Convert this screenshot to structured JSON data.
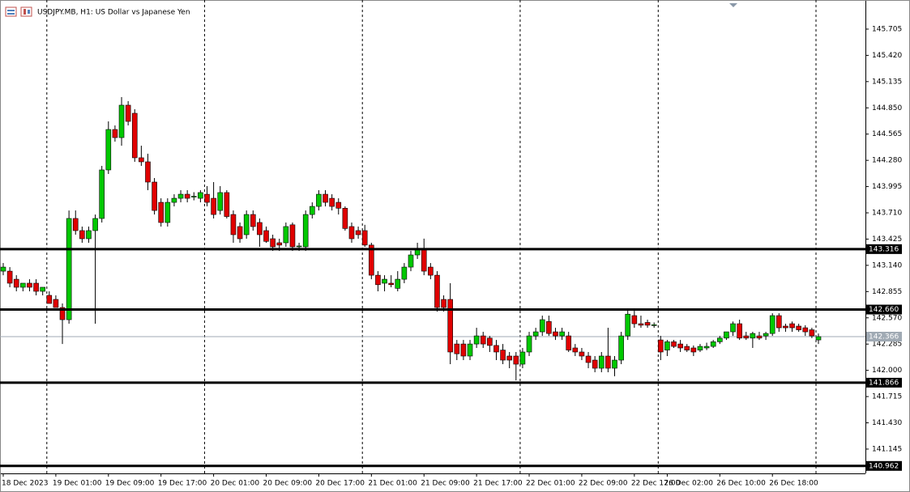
{
  "chart_data": {
    "type": "candlestick",
    "title": "USDJPY.MB, H1:  US Dollar vs Japanese Yen",
    "categories": [
      "18 Dec 2023",
      null,
      null,
      null,
      null,
      null,
      null,
      null,
      "19 Dec 01:00",
      null,
      null,
      null,
      null,
      null,
      null,
      null,
      "19 Dec 09:00",
      null,
      null,
      null,
      null,
      null,
      null,
      null,
      "19 Dec 17:00",
      null,
      null,
      null,
      null,
      null,
      null,
      null,
      "20 Dec 01:00",
      null,
      null,
      null,
      null,
      null,
      null,
      null,
      "20 Dec 09:00",
      null,
      null,
      null,
      null,
      null,
      null,
      null,
      "20 Dec 17:00",
      null,
      null,
      null,
      null,
      null,
      null,
      null,
      "21 Dec 01:00",
      null,
      null,
      null,
      null,
      null,
      null,
      null,
      "21 Dec 09:00",
      null,
      null,
      null,
      null,
      null,
      null,
      null,
      "21 Dec 17:00",
      null,
      null,
      null,
      null,
      null,
      null,
      null,
      "22 Dec 01:00",
      null,
      null,
      null,
      null,
      null,
      null,
      null,
      "22 Dec 09:00",
      null,
      null,
      null,
      null,
      null,
      null,
      null,
      "22 Dec 17:00",
      null,
      null,
      null,
      null,
      "26 Dec 02:00",
      null,
      null,
      null,
      null,
      null,
      null,
      null,
      "26 Dec 10:00",
      null,
      null,
      null,
      null,
      null,
      null,
      null,
      "26 Dec 18:00",
      null,
      null,
      null,
      null,
      null,
      null,
      null
    ],
    "ohlc": [
      [
        143.077,
        143.165,
        143.033,
        143.121
      ],
      [
        143.077,
        143.121,
        142.902,
        142.946
      ],
      [
        142.989,
        143.033,
        142.858,
        142.902
      ],
      [
        142.902,
        142.946,
        142.858,
        142.946
      ],
      [
        142.946,
        142.989,
        142.858,
        142.902
      ],
      [
        142.946,
        142.989,
        142.814,
        142.858
      ],
      [
        142.858,
        142.902,
        142.814,
        142.902
      ],
      [
        142.814,
        142.858,
        142.726,
        142.726
      ],
      [
        142.77,
        142.814,
        142.682,
        142.682
      ],
      [
        142.682,
        142.726,
        142.286,
        142.55
      ],
      [
        142.55,
        143.736,
        142.506,
        143.649
      ],
      [
        143.649,
        143.736,
        143.473,
        143.517
      ],
      [
        143.517,
        143.561,
        143.385,
        143.429
      ],
      [
        143.429,
        143.561,
        143.385,
        143.517
      ],
      [
        143.517,
        143.692,
        142.506,
        143.649
      ],
      [
        143.649,
        144.22,
        143.605,
        144.176
      ],
      [
        144.176,
        144.703,
        144.132,
        144.615
      ],
      [
        144.615,
        144.659,
        144.483,
        144.527
      ],
      [
        144.527,
        144.967,
        144.439,
        144.879
      ],
      [
        144.879,
        144.923,
        144.659,
        144.703
      ],
      [
        144.791,
        144.835,
        144.264,
        144.308
      ],
      [
        144.308,
        144.439,
        144.22,
        144.264
      ],
      [
        144.264,
        144.352,
        143.956,
        144.044
      ],
      [
        144.044,
        144.088,
        143.692,
        143.736
      ],
      [
        143.824,
        143.868,
        143.561,
        143.605
      ],
      [
        143.605,
        143.868,
        143.561,
        143.824
      ],
      [
        143.824,
        143.912,
        143.78,
        143.868
      ],
      [
        143.868,
        143.956,
        143.824,
        143.912
      ],
      [
        143.912,
        143.956,
        143.824,
        143.868
      ],
      [
        143.89,
        143.934,
        143.846,
        143.89
      ],
      [
        143.868,
        143.956,
        143.824,
        143.93
      ],
      [
        143.912,
        144.0,
        143.78,
        143.824
      ],
      [
        143.868,
        144.044,
        143.649,
        143.692
      ],
      [
        143.736,
        144.0,
        143.692,
        143.93
      ],
      [
        143.93,
        143.956,
        143.649,
        143.67
      ],
      [
        143.692,
        143.736,
        143.385,
        143.473
      ],
      [
        143.561,
        143.605,
        143.385,
        143.429
      ],
      [
        143.473,
        143.736,
        143.429,
        143.692
      ],
      [
        143.692,
        143.736,
        143.517,
        143.561
      ],
      [
        143.605,
        143.649,
        143.341,
        143.473
      ],
      [
        143.517,
        143.561,
        143.385,
        143.4
      ],
      [
        143.429,
        143.473,
        143.297,
        143.341
      ],
      [
        143.385,
        143.429,
        143.297,
        143.36
      ],
      [
        143.385,
        143.605,
        143.341,
        143.561
      ],
      [
        143.58,
        143.605,
        143.297,
        143.341
      ],
      [
        143.341,
        143.385,
        143.297,
        143.35
      ],
      [
        143.341,
        143.736,
        143.297,
        143.692
      ],
      [
        143.692,
        143.824,
        143.649,
        143.78
      ],
      [
        143.78,
        143.956,
        143.736,
        143.912
      ],
      [
        143.912,
        143.956,
        143.78,
        143.824
      ],
      [
        143.868,
        143.912,
        143.736,
        143.78
      ],
      [
        143.824,
        143.868,
        143.692,
        143.76
      ],
      [
        143.76,
        143.78,
        143.517,
        143.54
      ],
      [
        143.561,
        143.605,
        143.385,
        143.429
      ],
      [
        143.517,
        143.561,
        143.429,
        143.473
      ],
      [
        143.517,
        143.58,
        143.341,
        143.36
      ],
      [
        143.36,
        143.385,
        142.989,
        143.033
      ],
      [
        143.033,
        143.077,
        142.858,
        142.93
      ],
      [
        142.946,
        143.033,
        142.858,
        142.989
      ],
      [
        142.946,
        143.033,
        142.902,
        142.93
      ],
      [
        142.89,
        143.077,
        142.858,
        142.989
      ],
      [
        142.989,
        143.165,
        142.946,
        143.121
      ],
      [
        143.121,
        143.297,
        143.077,
        143.253
      ],
      [
        143.253,
        143.385,
        143.209,
        143.32
      ],
      [
        143.32,
        143.43,
        143.033,
        143.077
      ],
      [
        143.121,
        143.165,
        142.989,
        143.033
      ],
      [
        143.033,
        143.077,
        142.638,
        142.682
      ],
      [
        142.77,
        142.814,
        142.638,
        142.682
      ],
      [
        142.77,
        142.946,
        142.067,
        142.199
      ],
      [
        142.286,
        142.33,
        142.111,
        142.18
      ],
      [
        142.286,
        142.33,
        142.111,
        142.155
      ],
      [
        142.155,
        142.33,
        142.111,
        142.286
      ],
      [
        142.286,
        142.462,
        142.243,
        142.374
      ],
      [
        142.374,
        142.418,
        142.243,
        142.286
      ],
      [
        142.35,
        142.374,
        142.199,
        142.27
      ],
      [
        142.27,
        142.33,
        142.111,
        142.199
      ],
      [
        142.22,
        142.286,
        142.067,
        142.111
      ],
      [
        142.155,
        142.199,
        142.023,
        142.111
      ],
      [
        142.155,
        142.199,
        141.891,
        142.067
      ],
      [
        142.067,
        142.243,
        142.023,
        142.199
      ],
      [
        142.199,
        142.418,
        142.155,
        142.374
      ],
      [
        142.374,
        142.462,
        142.33,
        142.418
      ],
      [
        142.418,
        142.594,
        142.374,
        142.55
      ],
      [
        142.53,
        142.594,
        142.374,
        142.4
      ],
      [
        142.418,
        142.462,
        142.33,
        142.374
      ],
      [
        142.374,
        142.462,
        142.33,
        142.418
      ],
      [
        142.374,
        142.418,
        142.199,
        142.22
      ],
      [
        142.243,
        142.286,
        142.155,
        142.199
      ],
      [
        142.199,
        142.243,
        142.111,
        142.155
      ],
      [
        142.155,
        142.199,
        142.023,
        142.085
      ],
      [
        142.111,
        142.155,
        141.979,
        142.023
      ],
      [
        142.023,
        142.199,
        141.979,
        142.155
      ],
      [
        142.155,
        142.462,
        141.979,
        142.023
      ],
      [
        142.023,
        142.155,
        141.935,
        142.111
      ],
      [
        142.111,
        142.418,
        142.067,
        142.374
      ],
      [
        142.374,
        142.66,
        142.33,
        142.61
      ],
      [
        142.594,
        142.65,
        142.462,
        142.506
      ],
      [
        142.506,
        142.594,
        142.462,
        142.49
      ],
      [
        142.52,
        142.55,
        142.462,
        142.49
      ],
      [
        142.49,
        142.52,
        142.462,
        142.495
      ],
      [
        142.33,
        142.374,
        142.111,
        142.199
      ],
      [
        142.22,
        142.33,
        142.155,
        142.31
      ],
      [
        142.31,
        142.33,
        142.243,
        142.26
      ],
      [
        142.286,
        142.33,
        142.199,
        142.243
      ],
      [
        142.26,
        142.286,
        142.199,
        142.22
      ],
      [
        142.243,
        142.27,
        142.155,
        142.199
      ],
      [
        142.22,
        142.286,
        142.199,
        142.26
      ],
      [
        142.243,
        142.3,
        142.22,
        142.26
      ],
      [
        142.26,
        142.33,
        142.243,
        142.31
      ],
      [
        142.31,
        142.374,
        142.286,
        142.35
      ],
      [
        142.35,
        142.418,
        142.33,
        142.418
      ],
      [
        142.418,
        142.53,
        142.374,
        142.506
      ],
      [
        142.506,
        142.55,
        142.33,
        142.35
      ],
      [
        142.374,
        142.418,
        142.33,
        142.35
      ],
      [
        142.35,
        142.418,
        142.243,
        142.4
      ],
      [
        142.374,
        142.418,
        142.33,
        142.35
      ],
      [
        142.374,
        142.418,
        142.33,
        142.4
      ],
      [
        142.4,
        142.62,
        142.374,
        142.594
      ],
      [
        142.594,
        142.62,
        142.418,
        142.462
      ],
      [
        142.48,
        142.506,
        142.418,
        142.462
      ],
      [
        142.506,
        142.53,
        142.418,
        142.462
      ],
      [
        142.48,
        142.506,
        142.418,
        142.44
      ],
      [
        142.462,
        142.49,
        142.374,
        142.418
      ],
      [
        142.44,
        142.462,
        142.35,
        142.374
      ],
      [
        142.33,
        142.4,
        142.286,
        142.366
      ]
    ],
    "up_color": "#00c800",
    "down_color": "#e00000",
    "ylim": [
      140.881,
      146.021
    ],
    "yticks": [
      145.705,
      {
        "value": 145.42,
        "label": "145.420"
      },
      145.135,
      {
        "value": 144.85,
        "label": "144.850"
      },
      144.565,
      {
        "value": 144.28,
        "label": "144.280"
      },
      143.995,
      {
        "value": 143.71,
        "label": "143.710"
      },
      143.425,
      {
        "value": 143.14,
        "label": "143.140"
      },
      142.855,
      {
        "value": 142.57,
        "label": "142.570"
      },
      142.285,
      {
        "value": 142.0,
        "label": "142.000"
      },
      141.715,
      {
        "value": 141.43,
        "label": "141.430"
      },
      141.145
    ],
    "levels": [
      143.316,
      {
        "value": 142.66,
        "label": "142.660"
      },
      141.866,
      140.962
    ],
    "last_price": 142.366,
    "grid": false
  }
}
